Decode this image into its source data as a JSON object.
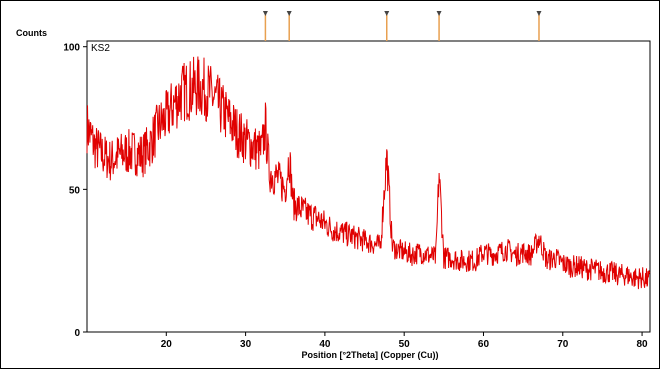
{
  "chart_data": {
    "type": "line",
    "ylabel": "Counts",
    "xlabel": "Position [°2Theta] (Copper (Cu))",
    "sample_label": "KS2",
    "xlim": [
      10,
      81
    ],
    "ylim": [
      0,
      102
    ],
    "xticks": [
      20,
      30,
      40,
      50,
      60,
      70,
      80
    ],
    "yticks": [
      0,
      50,
      100
    ],
    "series_color": "#e00000",
    "reference_color": "#e8a050",
    "reference_peaks": [
      32.5,
      35.5,
      47.8,
      54.4,
      67.0
    ],
    "series": [
      {
        "x": [
          10,
          11,
          12,
          13,
          14,
          15,
          16,
          17,
          18,
          19,
          20,
          21,
          22,
          23,
          24,
          25,
          26,
          27,
          28,
          29,
          30,
          31,
          32,
          32.5,
          33,
          34,
          35,
          35.5,
          36,
          37,
          38,
          39,
          40,
          41,
          42,
          43,
          44,
          45,
          46,
          47,
          47.8,
          48.5,
          49,
          50,
          51,
          52,
          53,
          54,
          54.4,
          55,
          56,
          57,
          58,
          59,
          60,
          61,
          62,
          63,
          64,
          65,
          66,
          67,
          68,
          69,
          70,
          71,
          72,
          73,
          74,
          75,
          76,
          77,
          78,
          79,
          80,
          81
        ],
        "values": [
          72,
          65,
          62,
          60,
          62,
          63,
          63,
          62,
          66,
          72,
          75,
          80,
          84,
          85,
          86,
          85,
          82,
          78,
          74,
          70,
          67,
          65,
          63,
          72,
          56,
          54,
          50,
          62,
          45,
          43,
          41,
          40,
          38,
          36,
          35,
          34,
          33,
          32,
          31,
          30,
          62,
          30,
          29,
          28,
          27,
          28,
          27,
          26,
          56,
          26,
          26,
          25,
          25,
          25,
          28,
          27,
          28,
          29,
          27,
          28,
          27,
          33,
          25,
          26,
          24,
          23,
          23,
          22,
          22,
          21,
          21,
          20,
          20,
          19,
          19,
          18
        ]
      }
    ]
  }
}
